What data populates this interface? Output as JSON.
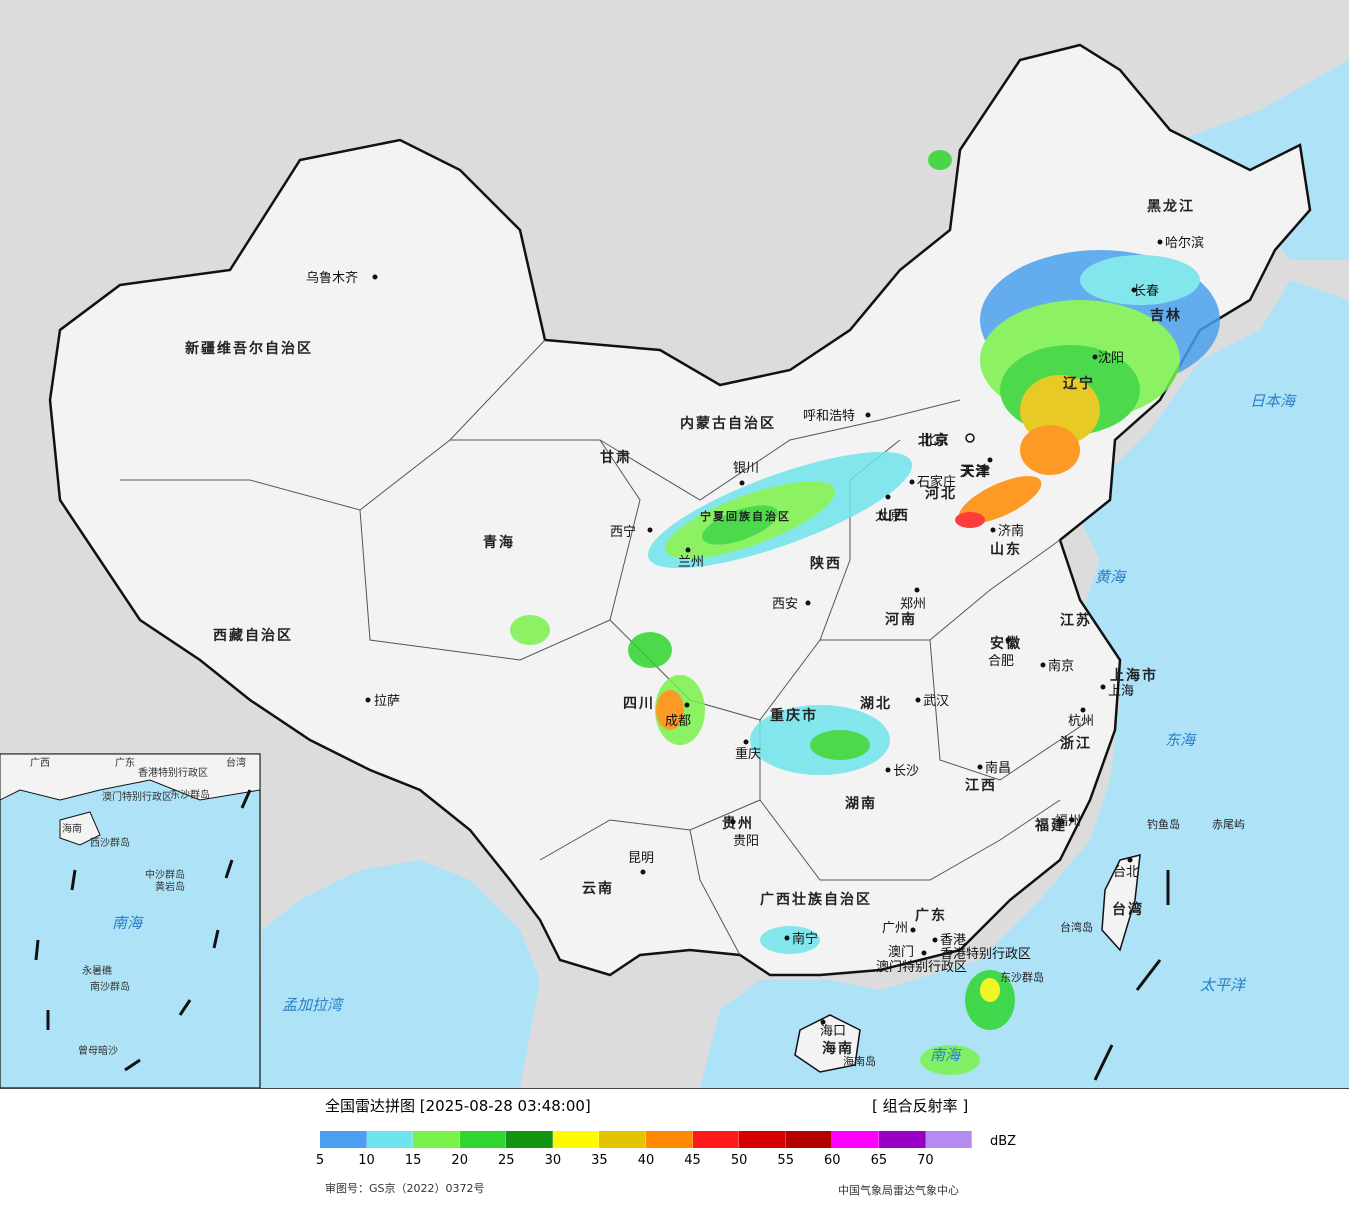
{
  "legend": {
    "title": "全国雷达拼图 [2025-08-28 03:48:00]",
    "product": "[ 组合反射率 ]",
    "unit": "dBZ",
    "ticks": [
      "5",
      "10",
      "15",
      "20",
      "25",
      "30",
      "35",
      "40",
      "45",
      "50",
      "55",
      "60",
      "65",
      "70"
    ],
    "colors": [
      "#4aa0ee",
      "#6fe4ec",
      "#7af24a",
      "#2fd62f",
      "#139413",
      "#fffa00",
      "#e5c300",
      "#ff8a00",
      "#ff1a1a",
      "#d60000",
      "#b50000",
      "#ff00ff",
      "#9a00c4",
      "#b48cf0"
    ],
    "approval": "审图号：GS京（2022）0372号",
    "source": "中国气象局雷达气象中心"
  },
  "map": {
    "land_color": "#f3f3f3",
    "sea_color": "#aee3f7",
    "outside_color": "#dcdcdc",
    "regions": [
      "新疆维吾尔自治区",
      "西藏自治区",
      "青海",
      "甘肃",
      "内蒙古自治区",
      "黑龙江",
      "吉林",
      "辽宁",
      "河北",
      "山西",
      "陕西",
      "宁夏回族自治区",
      "河南",
      "山东",
      "江苏",
      "安徽",
      "湖北",
      "四川",
      "重庆市",
      "贵州",
      "云南",
      "湖南",
      "江西",
      "浙江",
      "福建",
      "广东",
      "广西壮族自治区",
      "海南",
      "台湾",
      "上海市",
      "天津",
      "北京"
    ],
    "cities": [
      "乌鲁木齐",
      "拉萨",
      "西宁",
      "兰州",
      "银川",
      "呼和浩特",
      "北京",
      "天津",
      "石家庄",
      "太原",
      "济南",
      "郑州",
      "西安",
      "合肥",
      "南京",
      "上海",
      "杭州",
      "武汉",
      "成都",
      "重庆",
      "长沙",
      "南昌",
      "福州",
      "贵阳",
      "昆明",
      "南宁",
      "广州",
      "香港",
      "澳门",
      "海口",
      "哈尔滨",
      "长春",
      "沈阳",
      "台北"
    ],
    "seas": [
      "日本海",
      "黄海",
      "东海",
      "太平洋",
      "南海",
      "孟加拉湾"
    ],
    "islands": [
      "钓鱼岛",
      "赤尾屿",
      "台湾岛",
      "东沙群岛",
      "海南岛"
    ],
    "sars": [
      "香港特别行政区",
      "澳门特别行政区"
    ],
    "inset": [
      "海南",
      "广东",
      "广西",
      "香港特别行政区",
      "澳门特别行政区",
      "台湾",
      "东沙群岛",
      "中沙群岛",
      "西沙群岛",
      "南沙群岛",
      "黄岩岛",
      "永暑礁",
      "南海",
      "曾母暗沙"
    ]
  }
}
